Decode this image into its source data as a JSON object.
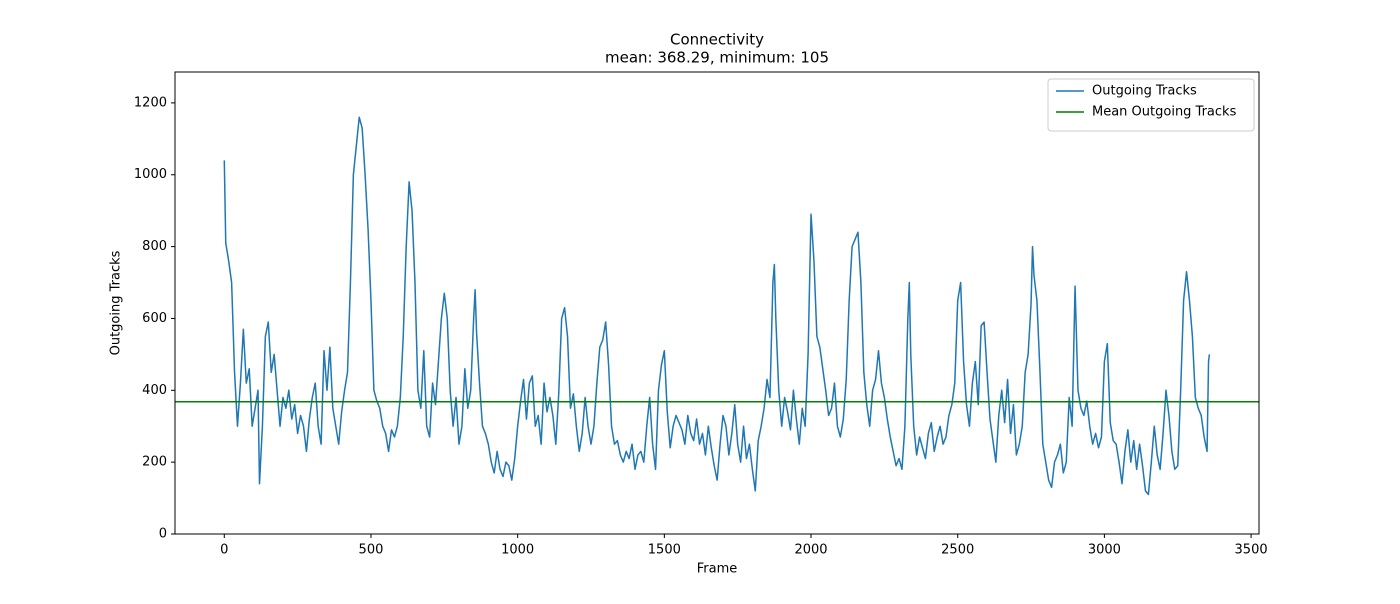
{
  "chart_data": {
    "type": "line",
    "title": "Connectivity",
    "subtitle": "mean: 368.29, minimum: 105",
    "xlabel": "Frame",
    "ylabel": "Outgoing Tracks",
    "xlim": [
      -168,
      3527
    ],
    "ylim": [
      0,
      1286
    ],
    "xticks": [
      0,
      500,
      1000,
      1500,
      2000,
      2500,
      3000,
      3500
    ],
    "yticks": [
      0,
      200,
      400,
      600,
      800,
      1000,
      1200
    ],
    "legend": "upper right",
    "x": [
      0,
      5,
      15,
      25,
      35,
      45,
      55,
      65,
      75,
      85,
      95,
      105,
      115,
      120,
      130,
      140,
      150,
      160,
      170,
      180,
      190,
      200,
      210,
      220,
      230,
      240,
      250,
      260,
      270,
      280,
      290,
      300,
      310,
      320,
      330,
      340,
      350,
      360,
      370,
      380,
      390,
      400,
      410,
      420,
      430,
      440,
      450,
      460,
      470,
      480,
      490,
      500,
      510,
      520,
      530,
      540,
      550,
      560,
      570,
      580,
      590,
      600,
      610,
      620,
      630,
      640,
      650,
      660,
      670,
      680,
      690,
      700,
      710,
      720,
      730,
      740,
      750,
      760,
      770,
      780,
      790,
      800,
      810,
      820,
      830,
      840,
      850,
      855,
      860,
      870,
      880,
      890,
      900,
      910,
      920,
      930,
      940,
      950,
      960,
      970,
      980,
      990,
      1000,
      1010,
      1020,
      1030,
      1040,
      1050,
      1060,
      1070,
      1080,
      1090,
      1100,
      1110,
      1120,
      1130,
      1140,
      1150,
      1160,
      1170,
      1180,
      1190,
      1200,
      1210,
      1220,
      1230,
      1240,
      1250,
      1260,
      1270,
      1280,
      1290,
      1300,
      1310,
      1320,
      1330,
      1340,
      1350,
      1360,
      1370,
      1380,
      1390,
      1400,
      1410,
      1420,
      1430,
      1440,
      1450,
      1460,
      1470,
      1480,
      1490,
      1500,
      1510,
      1520,
      1530,
      1540,
      1550,
      1560,
      1570,
      1580,
      1590,
      1600,
      1610,
      1620,
      1630,
      1640,
      1650,
      1660,
      1670,
      1680,
      1690,
      1700,
      1710,
      1720,
      1730,
      1740,
      1750,
      1760,
      1770,
      1780,
      1790,
      1800,
      1810,
      1820,
      1830,
      1840,
      1850,
      1860,
      1870,
      1875,
      1880,
      1890,
      1900,
      1910,
      1920,
      1930,
      1940,
      1950,
      1960,
      1970,
      1980,
      1990,
      2000,
      2010,
      2020,
      2030,
      2040,
      2050,
      2060,
      2070,
      2080,
      2090,
      2100,
      2110,
      2120,
      2130,
      2140,
      2150,
      2160,
      2170,
      2180,
      2190,
      2200,
      2210,
      2220,
      2230,
      2240,
      2250,
      2260,
      2270,
      2280,
      2290,
      2300,
      2310,
      2320,
      2330,
      2335,
      2340,
      2350,
      2360,
      2370,
      2380,
      2390,
      2400,
      2410,
      2420,
      2430,
      2440,
      2450,
      2460,
      2470,
      2480,
      2490,
      2500,
      2510,
      2520,
      2530,
      2540,
      2550,
      2560,
      2570,
      2580,
      2590,
      2600,
      2610,
      2620,
      2630,
      2640,
      2650,
      2660,
      2670,
      2680,
      2690,
      2700,
      2710,
      2720,
      2730,
      2740,
      2750,
      2755,
      2760,
      2770,
      2780,
      2790,
      2800,
      2810,
      2820,
      2830,
      2840,
      2850,
      2860,
      2870,
      2880,
      2890,
      2900,
      2910,
      2920,
      2930,
      2940,
      2950,
      2960,
      2970,
      2980,
      2990,
      3000,
      3010,
      3020,
      3030,
      3040,
      3050,
      3060,
      3070,
      3080,
      3090,
      3100,
      3110,
      3120,
      3130,
      3140,
      3150,
      3160,
      3170,
      3180,
      3190,
      3200,
      3210,
      3220,
      3230,
      3240,
      3250,
      3260,
      3270,
      3280,
      3290,
      3300,
      3310,
      3320,
      3330,
      3340,
      3350,
      3355,
      3358
    ],
    "series": [
      {
        "name": "Outgoing Tracks",
        "color": "#1f77b4",
        "values": [
          1040,
          810,
          760,
          700,
          450,
          300,
          420,
          570,
          420,
          460,
          300,
          350,
          400,
          140,
          300,
          550,
          590,
          450,
          500,
          400,
          300,
          380,
          350,
          400,
          320,
          360,
          280,
          330,
          300,
          230,
          320,
          380,
          420,
          300,
          250,
          510,
          400,
          520,
          350,
          300,
          250,
          340,
          400,
          450,
          700,
          1000,
          1080,
          1160,
          1130,
          1000,
          850,
          650,
          400,
          370,
          350,
          300,
          280,
          230,
          290,
          270,
          300,
          380,
          550,
          800,
          980,
          900,
          700,
          400,
          350,
          510,
          300,
          270,
          420,
          360,
          480,
          600,
          670,
          600,
          400,
          300,
          380,
          250,
          300,
          460,
          350,
          400,
          600,
          680,
          560,
          420,
          300,
          280,
          250,
          200,
          170,
          230,
          180,
          160,
          200,
          190,
          150,
          210,
          300,
          370,
          430,
          320,
          420,
          440,
          300,
          330,
          250,
          420,
          340,
          380,
          330,
          250,
          390,
          600,
          630,
          550,
          350,
          390,
          300,
          230,
          280,
          380,
          300,
          250,
          300,
          420,
          520,
          540,
          590,
          470,
          300,
          250,
          260,
          220,
          200,
          230,
          210,
          250,
          180,
          220,
          230,
          200,
          300,
          380,
          250,
          180,
          400,
          470,
          510,
          340,
          240,
          300,
          330,
          310,
          290,
          250,
          330,
          280,
          260,
          320,
          250,
          280,
          220,
          300,
          240,
          190,
          150,
          250,
          330,
          300,
          220,
          280,
          360,
          250,
          200,
          300,
          210,
          250,
          180,
          120,
          260,
          300,
          350,
          430,
          380,
          700,
          750,
          600,
          400,
          300,
          380,
          340,
          290,
          400,
          320,
          250,
          350,
          300,
          500,
          890,
          760,
          550,
          520,
          460,
          400,
          330,
          350,
          420,
          300,
          270,
          320,
          430,
          650,
          800,
          820,
          840,
          700,
          450,
          360,
          300,
          400,
          430,
          510,
          420,
          380,
          320,
          270,
          230,
          190,
          210,
          180,
          300,
          600,
          700,
          500,
          300,
          220,
          270,
          240,
          210,
          280,
          310,
          230,
          270,
          300,
          250,
          270,
          330,
          360,
          420,
          650,
          700,
          480,
          360,
          300,
          420,
          480,
          360,
          580,
          590,
          450,
          320,
          260,
          200,
          330,
          400,
          310,
          430,
          280,
          360,
          220,
          250,
          300,
          450,
          500,
          640,
          800,
          720,
          650,
          460,
          250,
          200,
          150,
          130,
          200,
          220,
          250,
          170,
          200,
          380,
          300,
          690,
          400,
          350,
          330,
          370,
          300,
          250,
          280,
          240,
          270,
          480,
          530,
          310,
          260,
          250,
          200,
          140,
          230,
          290,
          200,
          260,
          180,
          250,
          190,
          120,
          110,
          200,
          300,
          220,
          180,
          280,
          400,
          330,
          230,
          180,
          190,
          400,
          650,
          730,
          650,
          550,
          380,
          350,
          330,
          270,
          230,
          480,
          500
        ]
      },
      {
        "name": "Mean Outgoing Tracks",
        "color": "green",
        "value": 368.29
      }
    ]
  }
}
